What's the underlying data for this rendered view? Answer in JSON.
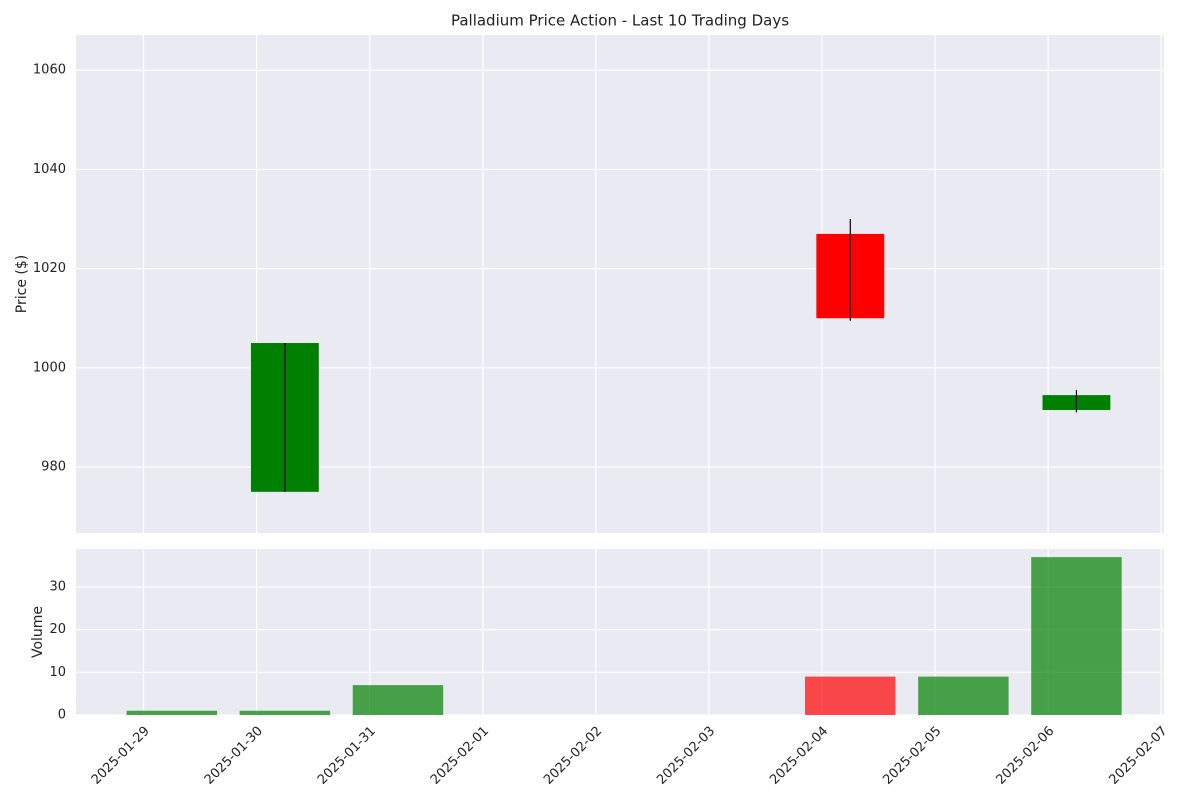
{
  "chart_data": [
    {
      "type": "candlestick",
      "title": "Palladium Price Action - Last 10 Trading Days",
      "y_label": "Price ($)",
      "x": [
        "2025-01-30",
        "2025-02-04",
        "2025-02-06"
      ],
      "open": [
        975,
        1027,
        991.5
      ],
      "high": [
        1005,
        1030,
        995.5
      ],
      "low": [
        975,
        1009.5,
        991
      ],
      "close": [
        1005,
        1010,
        994.5
      ],
      "up_color": "green",
      "down_color": "red",
      "wick_color": "black",
      "xlim": [
        "2025-01-28T09:40",
        "2025-02-07T00:35"
      ],
      "xticks": [
        "2025-01-29",
        "2025-01-30",
        "2025-01-31",
        "2025-02-01",
        "2025-02-02",
        "2025-02-03",
        "2025-02-04",
        "2025-02-05",
        "2025-02-06",
        "2025-02-07"
      ],
      "ylim": [
        966.7,
        1067.1
      ],
      "yticks": [
        980,
        1000,
        1020,
        1040,
        1060
      ],
      "grid": true
    },
    {
      "type": "bar",
      "y_label": "Volume",
      "x": [
        "2025-01-29",
        "2025-01-30",
        "2025-01-31",
        "2025-02-04",
        "2025-02-05",
        "2025-02-06"
      ],
      "values": [
        1,
        1,
        7,
        9,
        9,
        37
      ],
      "colors": [
        "green",
        "green",
        "green",
        "red",
        "green",
        "green"
      ],
      "opacity": 0.7,
      "xlim": [
        "2025-01-28T09:40",
        "2025-02-07T00:35"
      ],
      "xticks": [
        "2025-01-29",
        "2025-01-30",
        "2025-01-31",
        "2025-02-01",
        "2025-02-02",
        "2025-02-03",
        "2025-02-04",
        "2025-02-05",
        "2025-02-06",
        "2025-02-07"
      ],
      "ylim": [
        0,
        38.9
      ],
      "yticks": [
        0,
        10,
        20,
        30
      ],
      "grid": true
    }
  ]
}
